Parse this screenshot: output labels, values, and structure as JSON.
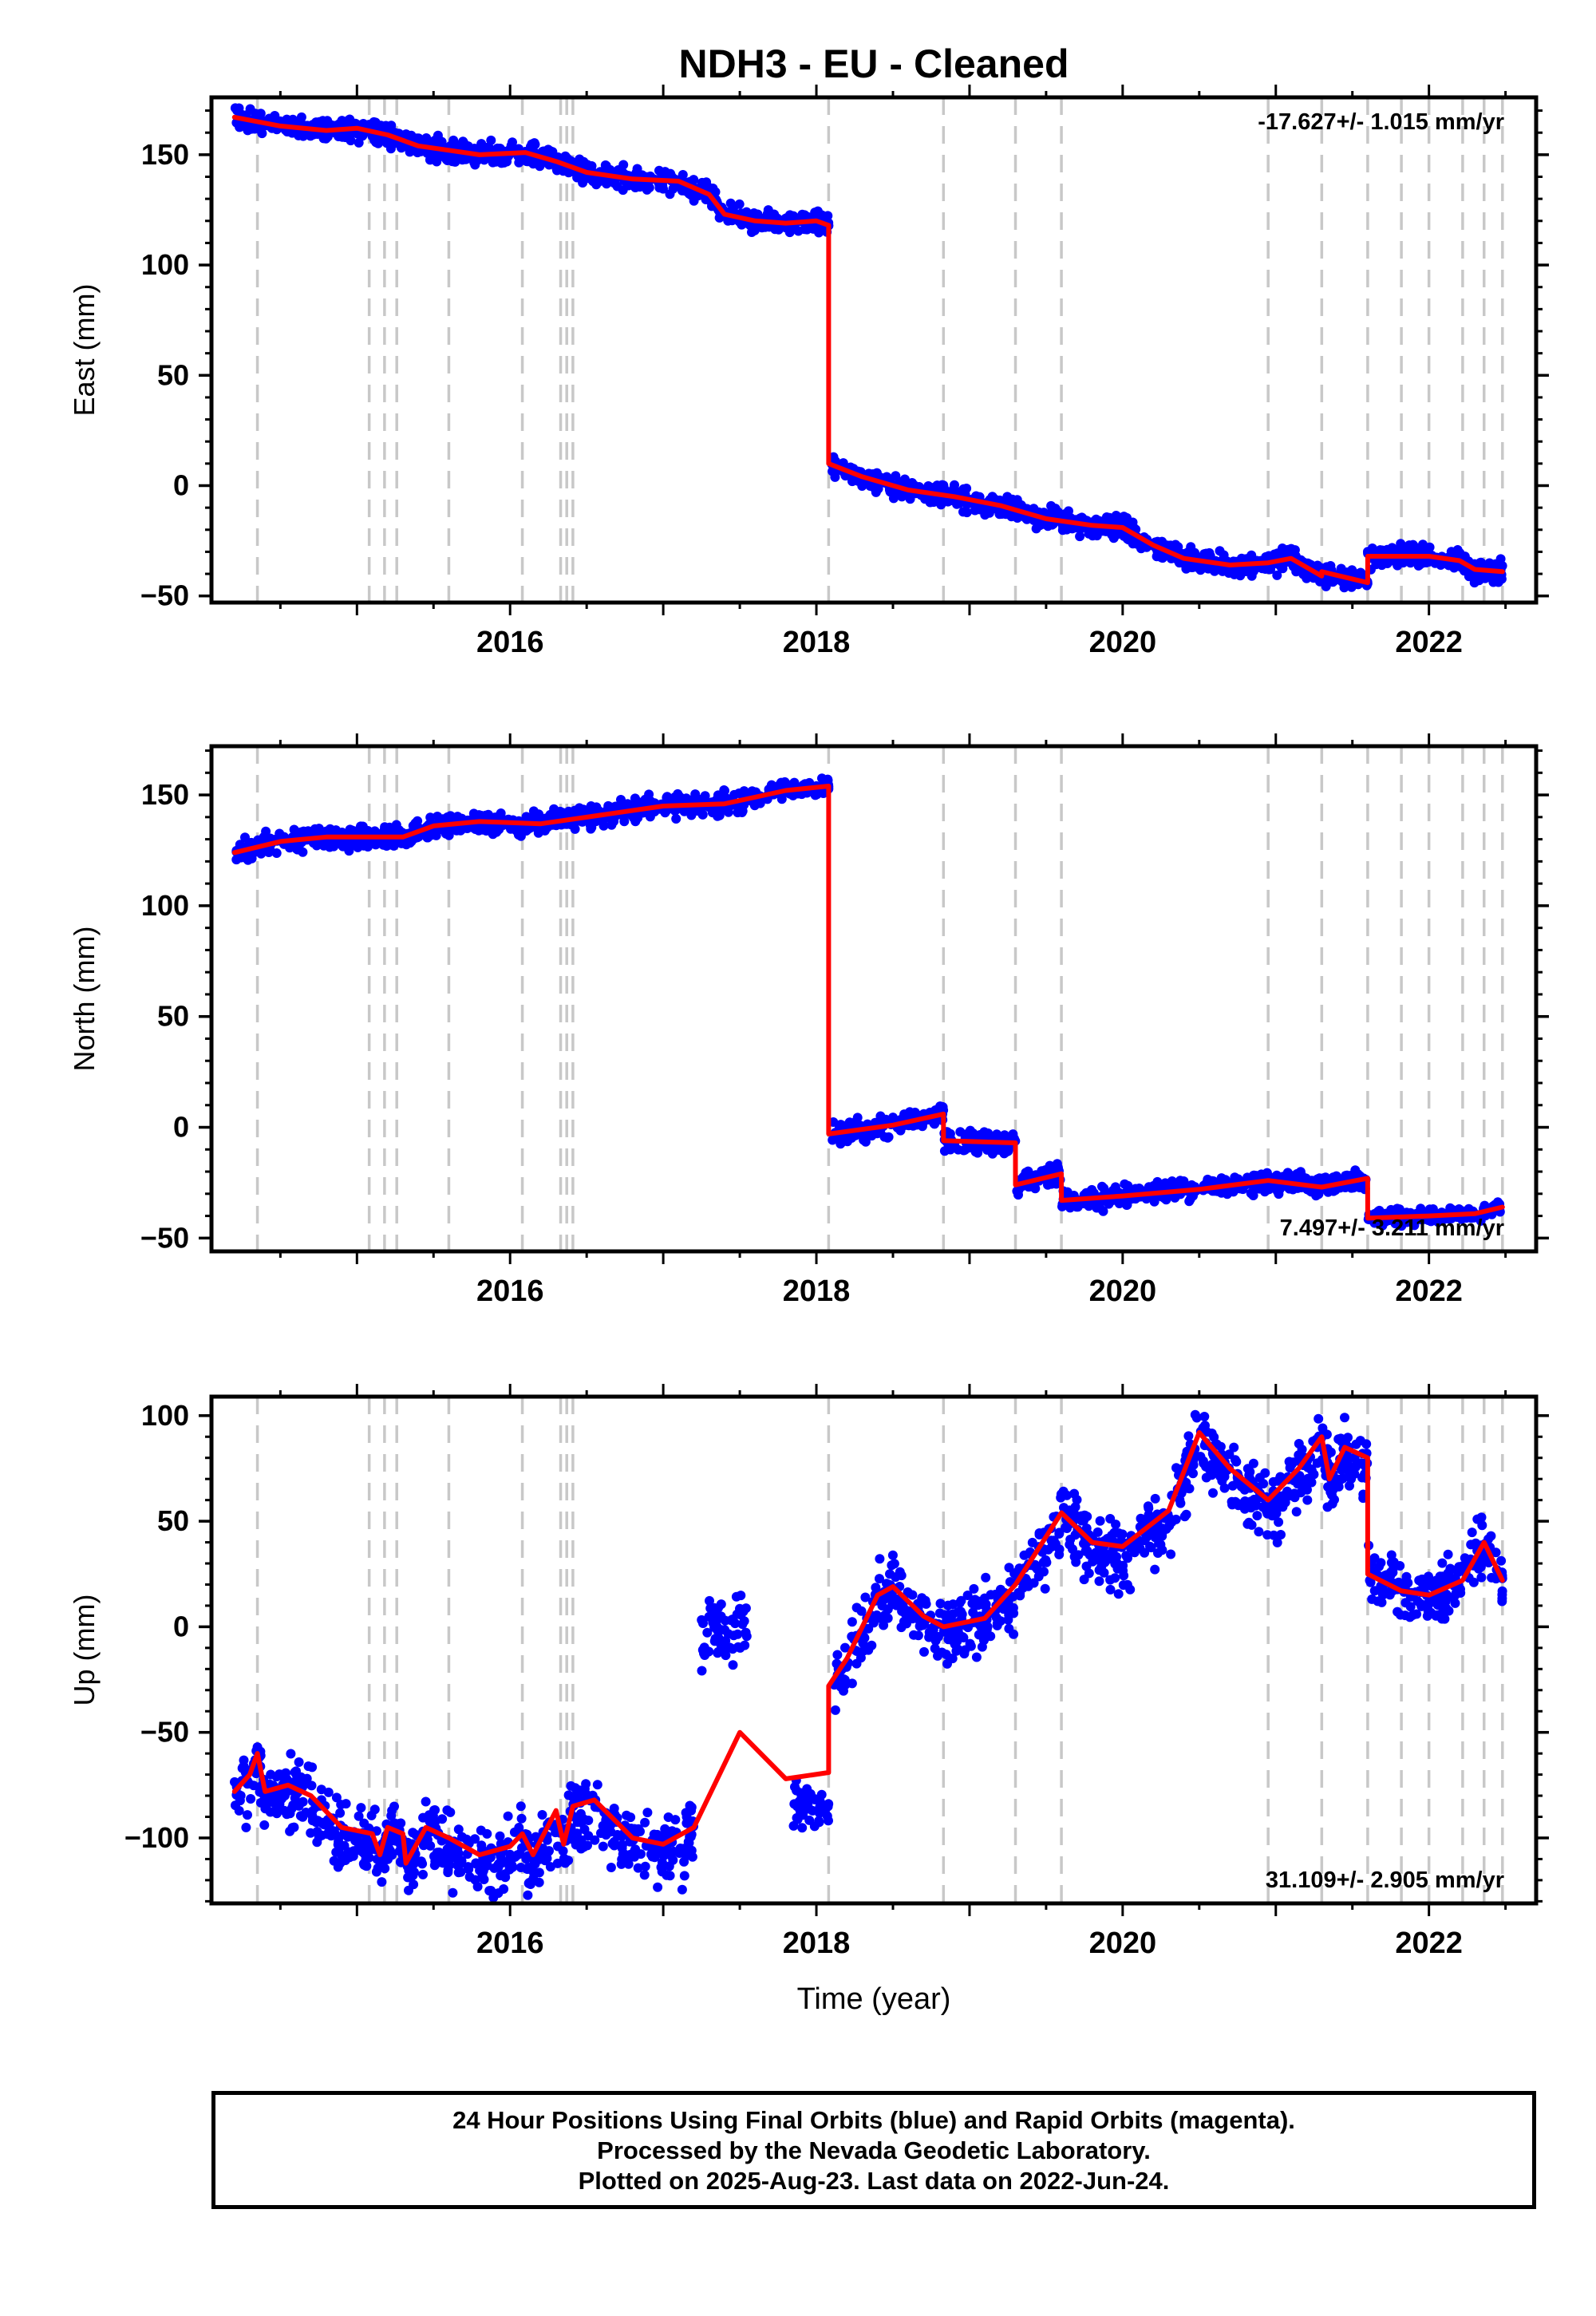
{
  "title": "NDH3  - EU - Cleaned",
  "xlabel": "Time (year)",
  "footer": {
    "line1": "24 Hour Positions Using Final Orbits (blue) and Rapid Orbits (magenta).",
    "line2": "Processed by the Nevada Geodetic Laboratory.",
    "line3": "Plotted on 2025-Aug-23. Last data on 2022-Jun-24."
  },
  "colors": {
    "points": "#0000ff",
    "model": "#ff0000",
    "events": "#c8c8c8",
    "frame": "#000000"
  },
  "chart_data": [
    {
      "type": "scatter",
      "name": "East",
      "ylabel": "East (mm)",
      "xlim": [
        2014.05,
        2022.7
      ],
      "ylim": [
        -53,
        176
      ],
      "yticks": [
        -50,
        0,
        50,
        100,
        150
      ],
      "xticks": [
        2016,
        2018,
        2020,
        2022
      ],
      "rate_label": "-17.627+/- 1.015 mm/yr",
      "rate_position": "top-right",
      "event_lines": [
        2014.35,
        2015.08,
        2015.18,
        2015.26,
        2015.6,
        2016.08,
        2016.33,
        2016.37,
        2016.41,
        2018.08,
        2018.83,
        2019.3,
        2019.6,
        2020.95,
        2021.3,
        2021.6,
        2021.82,
        2022.0,
        2022.22,
        2022.36,
        2022.48
      ],
      "model_breaks": [
        2018.08,
        2021.3,
        2021.6
      ],
      "model": [
        [
          2014.2,
          167
        ],
        [
          2014.5,
          163
        ],
        [
          2014.8,
          161
        ],
        [
          2015.0,
          162
        ],
        [
          2015.2,
          159
        ],
        [
          2015.4,
          154
        ],
        [
          2015.6,
          152
        ],
        [
          2015.8,
          150
        ],
        [
          2016.1,
          151
        ],
        [
          2016.3,
          147
        ],
        [
          2016.5,
          142
        ],
        [
          2016.8,
          139
        ],
        [
          2017.1,
          138
        ],
        [
          2017.3,
          132
        ],
        [
          2017.4,
          123
        ],
        [
          2017.6,
          120
        ],
        [
          2017.8,
          119
        ],
        [
          2018.0,
          120
        ],
        [
          2018.08,
          118
        ],
        [
          2018.08,
          10
        ],
        [
          2018.3,
          4
        ],
        [
          2018.6,
          -2
        ],
        [
          2018.9,
          -5
        ],
        [
          2019.2,
          -9
        ],
        [
          2019.5,
          -15
        ],
        [
          2019.8,
          -18
        ],
        [
          2020.0,
          -19
        ],
        [
          2020.2,
          -27
        ],
        [
          2020.4,
          -33
        ],
        [
          2020.7,
          -36
        ],
        [
          2020.95,
          -35
        ],
        [
          2021.1,
          -33
        ],
        [
          2021.3,
          -41
        ],
        [
          2021.3,
          -39
        ],
        [
          2021.6,
          -44
        ],
        [
          2021.6,
          -32
        ],
        [
          2021.8,
          -32
        ],
        [
          2022.0,
          -32
        ],
        [
          2022.2,
          -34
        ],
        [
          2022.3,
          -38
        ],
        [
          2022.48,
          -39
        ]
      ],
      "data_segments": [
        {
          "x0": 2014.2,
          "x1": 2018.08,
          "scatter": 3
        },
        {
          "x0": 2018.1,
          "x1": 2021.6,
          "scatter": 3
        },
        {
          "x0": 2021.6,
          "x1": 2022.48,
          "scatter": 3
        }
      ]
    },
    {
      "type": "scatter",
      "name": "North",
      "ylabel": "North (mm)",
      "xlim": [
        2014.05,
        2022.7
      ],
      "ylim": [
        -56,
        172
      ],
      "yticks": [
        -50,
        0,
        50,
        100,
        150
      ],
      "xticks": [
        2016,
        2018,
        2020,
        2022
      ],
      "rate_label": "7.497+/- 3.211 mm/yr",
      "rate_position": "bottom-right",
      "event_lines": [
        2014.35,
        2015.08,
        2015.18,
        2015.26,
        2015.6,
        2016.08,
        2016.33,
        2016.37,
        2016.41,
        2018.08,
        2018.83,
        2019.3,
        2019.6,
        2020.95,
        2021.3,
        2021.6,
        2021.82,
        2022.0,
        2022.22,
        2022.36,
        2022.48
      ],
      "model_breaks": [
        2018.08,
        2018.83,
        2019.3,
        2019.6,
        2021.6
      ],
      "model": [
        [
          2014.2,
          124
        ],
        [
          2014.5,
          129
        ],
        [
          2014.8,
          131
        ],
        [
          2015.1,
          131
        ],
        [
          2015.3,
          131
        ],
        [
          2015.5,
          136
        ],
        [
          2015.8,
          138
        ],
        [
          2016.2,
          137
        ],
        [
          2016.6,
          141
        ],
        [
          2017.0,
          145
        ],
        [
          2017.4,
          146
        ],
        [
          2017.8,
          152
        ],
        [
          2018.08,
          154
        ],
        [
          2018.08,
          -3
        ],
        [
          2018.5,
          1
        ],
        [
          2018.83,
          6
        ],
        [
          2018.83,
          -6
        ],
        [
          2019.3,
          -7
        ],
        [
          2019.3,
          -26
        ],
        [
          2019.6,
          -21
        ],
        [
          2019.6,
          -33
        ],
        [
          2020.0,
          -31
        ],
        [
          2020.5,
          -28
        ],
        [
          2020.95,
          -24
        ],
        [
          2021.3,
          -27
        ],
        [
          2021.6,
          -23
        ],
        [
          2021.6,
          -41
        ],
        [
          2022.0,
          -40
        ],
        [
          2022.3,
          -39
        ],
        [
          2022.48,
          -36
        ]
      ],
      "data_segments": [
        {
          "x0": 2014.2,
          "x1": 2017.8,
          "scatter": 3
        },
        {
          "x0": 2017.8,
          "x1": 2018.08,
          "scatter": 2
        },
        {
          "x0": 2018.1,
          "x1": 2021.6,
          "scatter": 3
        },
        {
          "x0": 2021.6,
          "x1": 2022.48,
          "scatter": 2
        }
      ]
    },
    {
      "type": "scatter",
      "name": "Up",
      "ylabel": "Up (mm)",
      "xlim": [
        2014.05,
        2022.7
      ],
      "ylim": [
        -131,
        109
      ],
      "yticks": [
        -100,
        -50,
        0,
        50,
        100
      ],
      "xticks": [
        2016,
        2018,
        2020,
        2022
      ],
      "rate_label": "31.109+/- 2.905 mm/yr",
      "rate_position": "bottom-right",
      "event_lines": [
        2014.35,
        2015.08,
        2015.18,
        2015.26,
        2015.6,
        2016.08,
        2016.33,
        2016.37,
        2016.41,
        2018.08,
        2018.83,
        2019.3,
        2019.6,
        2020.95,
        2021.3,
        2021.6,
        2021.82,
        2022.0,
        2022.22,
        2022.36,
        2022.48
      ],
      "model_breaks": [
        2018.08
      ],
      "model": [
        [
          2014.2,
          -78
        ],
        [
          2014.3,
          -70
        ],
        [
          2014.35,
          -60
        ],
        [
          2014.4,
          -78
        ],
        [
          2014.55,
          -75
        ],
        [
          2014.7,
          -80
        ],
        [
          2014.9,
          -95
        ],
        [
          2015.1,
          -98
        ],
        [
          2015.15,
          -108
        ],
        [
          2015.2,
          -95
        ],
        [
          2015.3,
          -98
        ],
        [
          2015.32,
          -112
        ],
        [
          2015.45,
          -95
        ],
        [
          2015.6,
          -100
        ],
        [
          2015.8,
          -108
        ],
        [
          2016.0,
          -104
        ],
        [
          2016.08,
          -98
        ],
        [
          2016.15,
          -108
        ],
        [
          2016.3,
          -87
        ],
        [
          2016.35,
          -103
        ],
        [
          2016.41,
          -85
        ],
        [
          2016.55,
          -82
        ],
        [
          2016.8,
          -100
        ],
        [
          2017.0,
          -103
        ],
        [
          2017.2,
          -95
        ],
        [
          2017.5,
          -50
        ],
        [
          2017.8,
          -72
        ],
        [
          2018.08,
          -69
        ],
        [
          2018.08,
          -28
        ],
        [
          2018.2,
          -15
        ],
        [
          2018.4,
          15
        ],
        [
          2018.5,
          19
        ],
        [
          2018.7,
          5
        ],
        [
          2018.83,
          0
        ],
        [
          2019.1,
          4
        ],
        [
          2019.3,
          20
        ],
        [
          2019.6,
          54
        ],
        [
          2019.8,
          40
        ],
        [
          2020.0,
          38
        ],
        [
          2020.3,
          55
        ],
        [
          2020.5,
          92
        ],
        [
          2020.7,
          75
        ],
        [
          2020.95,
          60
        ],
        [
          2021.15,
          75
        ],
        [
          2021.3,
          90
        ],
        [
          2021.35,
          70
        ],
        [
          2021.45,
          85
        ],
        [
          2021.6,
          80
        ],
        [
          2021.6,
          25
        ],
        [
          2021.82,
          17
        ],
        [
          2022.0,
          15
        ],
        [
          2022.22,
          22
        ],
        [
          2022.36,
          40
        ],
        [
          2022.48,
          22
        ]
      ],
      "data_segments": [
        {
          "x0": 2014.2,
          "x1": 2014.8,
          "offset": -3,
          "scatter": 10
        },
        {
          "x0": 2014.8,
          "x1": 2017.2,
          "offset": -5,
          "scatter": 10
        },
        {
          "x0": 2017.25,
          "x1": 2017.55,
          "abs": -2,
          "scatter": 9
        },
        {
          "x0": 2017.85,
          "x1": 2018.08,
          "abs": -85,
          "scatter": 6
        },
        {
          "x0": 2018.1,
          "x1": 2021.6,
          "offset": -3,
          "scatter": 10
        },
        {
          "x0": 2021.6,
          "x1": 2022.48,
          "offset": 0,
          "scatter": 8
        }
      ]
    }
  ]
}
